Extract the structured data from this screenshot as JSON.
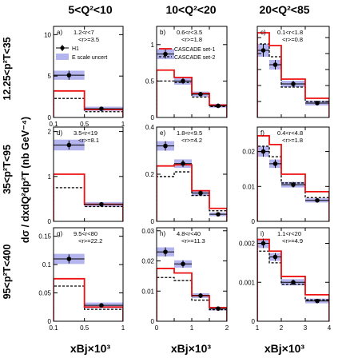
{
  "figure": {
    "column_titles": [
      "5<Q²<10",
      "10<Q²<20",
      "20<Q²<85"
    ],
    "row_titles": [
      "12.25<p²T<35",
      "35<p²T<95",
      "95<p²T<400"
    ],
    "y_axis_label": "dσ / dxdQ²dp²T (nb GeV⁻⁴)",
    "x_axis_label": "xBj×10³"
  },
  "legend": {
    "h1": "H1",
    "escale": "E scale uncert",
    "cascade1": "CASCADE set-1",
    "cascade2": "CASCADE set-2"
  },
  "colors": {
    "data": "#000000",
    "escale_band": "#b4b4ee",
    "cascade1": "#ee1111",
    "cascade2": "#000000"
  },
  "chart_data": [
    {
      "panel": "a)",
      "type": "bar",
      "range": "1.2<r<7",
      "mean": "<r>=3.5",
      "xlim": [
        0.1,
        1.0
      ],
      "ylim": [
        0,
        11
      ],
      "xticks": [
        0.1,
        0.5,
        1.0
      ],
      "xtick_labels": [
        "0.1",
        "0.5",
        "1"
      ],
      "yticks": [
        0,
        5,
        10
      ],
      "ytick_labels": [
        "0",
        "5",
        "10"
      ],
      "bins": [
        [
          0.1,
          0.5
        ],
        [
          0.5,
          1.0
        ]
      ],
      "x": [
        0.3,
        0.72
      ],
      "h1": [
        5.1,
        1.05
      ],
      "err": [
        0.55,
        0.2
      ],
      "band": [
        0.55,
        0.25
      ],
      "cascade1": [
        3.2,
        0.95
      ],
      "cascade2": [
        2.3,
        0.7
      ]
    },
    {
      "panel": "b)",
      "type": "bar",
      "range": "0.6<r<3.5",
      "mean": "<r>=1.8",
      "xlim": [
        0,
        2
      ],
      "ylim": [
        0,
        1.25
      ],
      "xticks": [
        0,
        0.5,
        1,
        1.5,
        2
      ],
      "xtick_labels": [],
      "yticks": [
        0,
        0.5,
        1
      ],
      "ytick_labels": [
        "0",
        "0.5",
        "1"
      ],
      "bins": [
        [
          0,
          0.5
        ],
        [
          0.5,
          1
        ],
        [
          1,
          1.5
        ],
        [
          1.5,
          2
        ]
      ],
      "x": [
        0.25,
        0.75,
        1.25,
        1.75
      ],
      "h1": [
        0.87,
        0.5,
        0.32,
        0.16
      ],
      "err": [
        0.06,
        0.04,
        0.03,
        0.03
      ],
      "band": [
        0.07,
        0.05,
        0.035,
        0.025
      ],
      "cascade1": [
        0.65,
        0.55,
        0.33,
        0.17
      ],
      "cascade2": [
        0.5,
        0.48,
        0.28,
        0.15
      ]
    },
    {
      "panel": "c)",
      "type": "bar",
      "range": "0.1<r<1.8",
      "mean": "<r>=0.8",
      "xlim": [
        1,
        4
      ],
      "ylim": [
        0,
        0.057
      ],
      "xticks": [
        1,
        2,
        3,
        4
      ],
      "xtick_labels": [],
      "yticks": [
        0,
        0.01,
        0.02,
        0.03,
        0.04,
        0.05
      ],
      "ytick_labels": [],
      "bins": [
        [
          1,
          1.5
        ],
        [
          1.5,
          2
        ],
        [
          2,
          3
        ],
        [
          3,
          4
        ]
      ],
      "x": [
        1.25,
        1.75,
        2.5,
        3.5
      ],
      "h1": [
        0.042,
        0.033,
        0.021,
        0.009
      ],
      "err": [
        0.004,
        0.003,
        0.002,
        0.0015
      ],
      "band": [
        0.004,
        0.003,
        0.002,
        0.0015
      ],
      "cascade1": [
        0.053,
        0.045,
        0.024,
        0.012
      ],
      "cascade2": [
        0.046,
        0.038,
        0.019,
        0.01
      ]
    },
    {
      "panel": "d)",
      "type": "bar",
      "range": "3.5<r<19",
      "mean": "<r>=8.1",
      "xlim": [
        0.1,
        1.0
      ],
      "ylim": [
        0,
        2.1
      ],
      "xticks": [
        0.1,
        0.5,
        1.0
      ],
      "xtick_labels": [],
      "yticks": [
        0,
        1,
        2
      ],
      "ytick_labels": [
        "0",
        "1",
        "2"
      ],
      "bins": [
        [
          0.1,
          0.5
        ],
        [
          0.5,
          1.0
        ]
      ],
      "x": [
        0.3,
        0.72
      ],
      "h1": [
        1.7,
        0.38
      ],
      "err": [
        0.1,
        0.03
      ],
      "band": [
        0.12,
        0.05
      ],
      "cascade1": [
        1.05,
        0.38
      ],
      "cascade2": [
        0.75,
        0.33
      ]
    },
    {
      "panel": "e)",
      "type": "bar",
      "range": "1.8<r<9.5",
      "mean": "<r>=4.2",
      "xlim": [
        0,
        2
      ],
      "ylim": [
        0,
        0.4
      ],
      "xticks": [
        0,
        0.5,
        1,
        1.5,
        2
      ],
      "xtick_labels": [],
      "yticks": [
        0,
        0.2,
        0.4
      ],
      "ytick_labels": [
        "0",
        "0.2",
        "0.4"
      ],
      "bins": [
        [
          0,
          0.5
        ],
        [
          0.5,
          1
        ],
        [
          1,
          1.5
        ],
        [
          1.5,
          2
        ]
      ],
      "x": [
        0.25,
        0.75,
        1.25,
        1.75
      ],
      "h1": [
        0.32,
        0.245,
        0.12,
        0.03
      ],
      "err": [
        0.02,
        0.015,
        0.01,
        0.005
      ],
      "band": [
        0.02,
        0.018,
        0.012,
        0.008
      ],
      "cascade1": [
        0.235,
        0.24,
        0.13,
        0.055
      ],
      "cascade2": [
        0.19,
        0.21,
        0.11,
        0.045
      ]
    },
    {
      "panel": "f)",
      "type": "bar",
      "range": "0.4<r<4.8",
      "mean": "<r>=1.8",
      "xlim": [
        1,
        4
      ],
      "ylim": [
        0,
        0.027
      ],
      "xticks": [
        1,
        2,
        3,
        4
      ],
      "xtick_labels": [],
      "yticks": [
        0,
        0.01,
        0.02
      ],
      "ytick_labels": [
        "0",
        "0.01",
        "0.02"
      ],
      "bins": [
        [
          1,
          1.5
        ],
        [
          1.5,
          2
        ],
        [
          2,
          3
        ],
        [
          3,
          4
        ]
      ],
      "x": [
        1.25,
        1.75,
        2.5,
        3.5
      ],
      "h1": [
        0.02,
        0.0165,
        0.0105,
        0.006
      ],
      "err": [
        0.0015,
        0.0012,
        0.0008,
        0.0006
      ],
      "band": [
        0.0015,
        0.0012,
        0.0008,
        0.0006
      ],
      "cascade1": [
        0.0245,
        0.022,
        0.0135,
        0.0085
      ],
      "cascade2": [
        0.0215,
        0.0185,
        0.011,
        0.0068
      ]
    },
    {
      "panel": "g)",
      "type": "bar",
      "range": "9.5<r<80",
      "mean": "<r>=22.2",
      "xlim": [
        0.1,
        1.0
      ],
      "ylim": [
        0,
        0.165
      ],
      "xticks": [
        0.1,
        0.5,
        1.0
      ],
      "xtick_labels": [
        "0.1",
        "0.5",
        "1"
      ],
      "yticks": [
        0,
        0.05,
        0.1,
        0.15
      ],
      "ytick_labels": [
        "0",
        "0.05",
        "0.1",
        "0.15"
      ],
      "bins": [
        [
          0.1,
          0.5
        ],
        [
          0.5,
          1.0
        ]
      ],
      "x": [
        0.3,
        0.72
      ],
      "h1": [
        0.11,
        0.028
      ],
      "err": [
        0.008,
        0.003
      ],
      "band": [
        0.009,
        0.005
      ],
      "cascade1": [
        0.075,
        0.025
      ],
      "cascade2": [
        0.062,
        0.021
      ]
    },
    {
      "panel": "h)",
      "type": "bar",
      "range": "4.8<r<40",
      "mean": "<r>=11.3",
      "xlim": [
        0,
        2
      ],
      "ylim": [
        0,
        0.031
      ],
      "xticks": [
        0,
        0.5,
        1,
        1.5,
        2
      ],
      "xtick_labels": [
        "0",
        "1",
        "2"
      ],
      "yticks": [
        0,
        0.01,
        0.02,
        0.03
      ],
      "ytick_labels": [
        "0",
        "0.01",
        "0.02",
        "0.03"
      ],
      "bins": [
        [
          0,
          0.5
        ],
        [
          0.5,
          1
        ],
        [
          1,
          1.5
        ],
        [
          1.5,
          2
        ]
      ],
      "x": [
        0.25,
        0.75,
        1.25,
        1.75
      ],
      "h1": [
        0.023,
        0.019,
        0.0085,
        0.0042
      ],
      "err": [
        0.0015,
        0.0012,
        0.0008,
        0.0005
      ],
      "band": [
        0.0015,
        0.0012,
        0.0008,
        0.0006
      ],
      "cascade1": [
        0.0175,
        0.016,
        0.0085,
        0.0045
      ],
      "cascade2": [
        0.0145,
        0.0135,
        0.007,
        0.0038
      ]
    },
    {
      "panel": "i)",
      "type": "bar",
      "range": "1.1<r<20",
      "mean": "<r>=4.9",
      "xlim": [
        1,
        4
      ],
      "ylim": [
        0,
        0.0024
      ],
      "xticks": [
        1,
        2,
        3,
        4
      ],
      "xtick_labels": [
        "1",
        "2",
        "3",
        "4"
      ],
      "yticks": [
        0,
        0.001,
        0.002
      ],
      "ytick_labels": [
        "0",
        "0.001",
        "0.002"
      ],
      "bins": [
        [
          1,
          1.5
        ],
        [
          1.5,
          2
        ],
        [
          2,
          3
        ],
        [
          3,
          4
        ]
      ],
      "x": [
        1.25,
        1.75,
        2.5,
        3.5
      ],
      "h1": [
        0.002,
        0.00165,
        0.001,
        0.00052
      ],
      "err": [
        0.00012,
        0.0001,
        7e-05,
        5e-05
      ],
      "band": [
        0.00012,
        0.0001,
        8e-05,
        6e-05
      ],
      "cascade1": [
        0.0021,
        0.0018,
        0.00115,
        0.00068
      ],
      "cascade2": [
        0.0018,
        0.0015,
        0.00095,
        0.00055
      ]
    }
  ]
}
